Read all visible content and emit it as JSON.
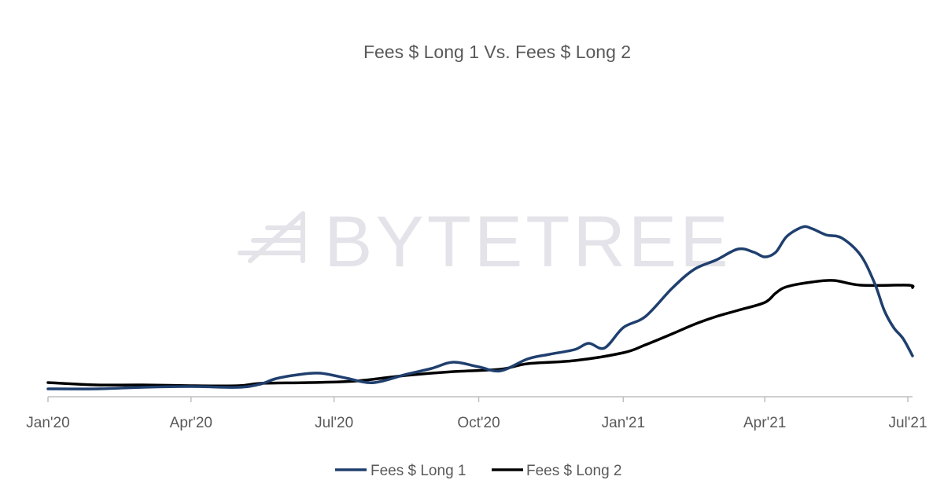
{
  "chart_data": {
    "type": "line",
    "title": "Fees $ Long 1 Vs. Fees $ Long 2",
    "xlabel": "",
    "ylabel": "",
    "y_axis_visible": false,
    "grid": false,
    "legend_position": "bottom",
    "x_tick_labels": [
      "Jan'20",
      "Apr'20",
      "Jul'20",
      "Oct'20",
      "Jan'21",
      "Apr'21",
      "Jul'21"
    ],
    "x_tick_dates": [
      "2020-01-01",
      "2020-04-01",
      "2020-07-01",
      "2020-10-01",
      "2021-01-01",
      "2021-04-01",
      "2021-07-01"
    ],
    "x_range": [
      "2020-01-01",
      "2021-07-04"
    ],
    "y_range": [
      0,
      100
    ],
    "watermark": "BYTETREE",
    "series": [
      {
        "name": "Fees $ Long 1",
        "color": "#1f3f6e",
        "points": [
          [
            "2020-01-01",
            1
          ],
          [
            "2020-02-01",
            1
          ],
          [
            "2020-03-01",
            2
          ],
          [
            "2020-04-01",
            2.5
          ],
          [
            "2020-05-01",
            2
          ],
          [
            "2020-05-15",
            4
          ],
          [
            "2020-05-25",
            7.5
          ],
          [
            "2020-06-08",
            10
          ],
          [
            "2020-06-22",
            11
          ],
          [
            "2020-07-08",
            8
          ],
          [
            "2020-07-22",
            5
          ],
          [
            "2020-08-01",
            6
          ],
          [
            "2020-08-15",
            10
          ],
          [
            "2020-09-01",
            14
          ],
          [
            "2020-09-15",
            18
          ],
          [
            "2020-10-01",
            15
          ],
          [
            "2020-10-15",
            12.5
          ],
          [
            "2020-11-01",
            20
          ],
          [
            "2020-11-15",
            23
          ],
          [
            "2020-12-01",
            26
          ],
          [
            "2020-12-10",
            30
          ],
          [
            "2020-12-20",
            27
          ],
          [
            "2021-01-01",
            40
          ],
          [
            "2021-01-15",
            47
          ],
          [
            "2021-02-01",
            65
          ],
          [
            "2021-02-15",
            77
          ],
          [
            "2021-03-01",
            83
          ],
          [
            "2021-03-15",
            90
          ],
          [
            "2021-03-25",
            88
          ],
          [
            "2021-04-01",
            85
          ],
          [
            "2021-04-08",
            88
          ],
          [
            "2021-04-15",
            98
          ],
          [
            "2021-04-25",
            104
          ],
          [
            "2021-05-01",
            103
          ],
          [
            "2021-05-10",
            99
          ],
          [
            "2021-05-20",
            97
          ],
          [
            "2021-06-01",
            86
          ],
          [
            "2021-06-10",
            68
          ],
          [
            "2021-06-16",
            51
          ],
          [
            "2021-06-22",
            40
          ],
          [
            "2021-06-28",
            33
          ],
          [
            "2021-07-04",
            22
          ]
        ]
      },
      {
        "name": "Fees $ Long 2",
        "color": "#000000",
        "points": [
          [
            "2020-01-01",
            5
          ],
          [
            "2020-02-01",
            3.5
          ],
          [
            "2020-03-01",
            3.5
          ],
          [
            "2020-04-01",
            3
          ],
          [
            "2020-05-01",
            3
          ],
          [
            "2020-05-15",
            4.5
          ],
          [
            "2020-06-15",
            5
          ],
          [
            "2020-07-15",
            6
          ],
          [
            "2020-08-15",
            9.5
          ],
          [
            "2020-09-15",
            12
          ],
          [
            "2020-10-15",
            13.5
          ],
          [
            "2020-11-01",
            17
          ],
          [
            "2020-12-01",
            19
          ],
          [
            "2021-01-01",
            24
          ],
          [
            "2021-01-15",
            29
          ],
          [
            "2021-02-01",
            36
          ],
          [
            "2021-02-15",
            42
          ],
          [
            "2021-03-01",
            47
          ],
          [
            "2021-03-15",
            51
          ],
          [
            "2021-04-01",
            56
          ],
          [
            "2021-04-08",
            62
          ],
          [
            "2021-04-15",
            66
          ],
          [
            "2021-05-01",
            69
          ],
          [
            "2021-05-15",
            70
          ],
          [
            "2021-06-01",
            67
          ],
          [
            "2021-07-01",
            67
          ],
          [
            "2021-07-04",
            65.5
          ]
        ]
      }
    ]
  }
}
